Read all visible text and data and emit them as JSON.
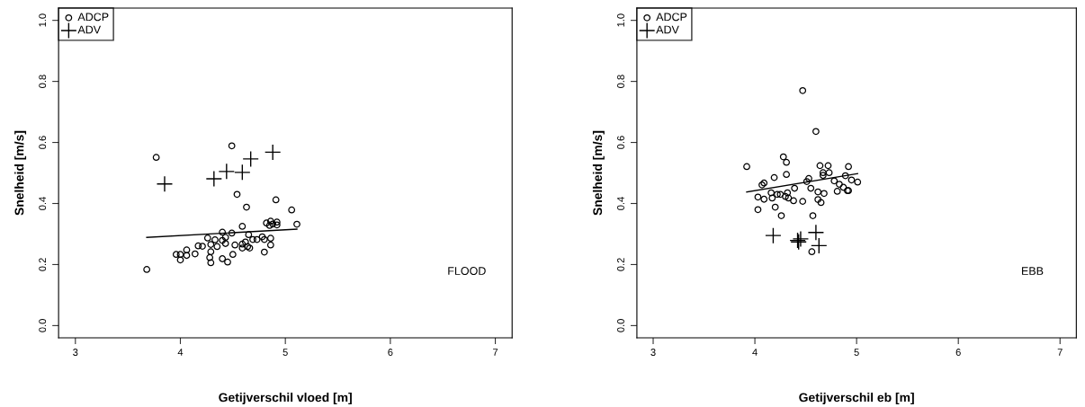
{
  "chart_data": [
    {
      "type": "scatter",
      "xlabel": "Getijverschil vloed [m]",
      "ylabel": "Snelheid [m/s]",
      "xlim": [
        2.84,
        7.16
      ],
      "ylim": [
        -0.04,
        1.04
      ],
      "xticks": [
        3,
        4,
        5,
        6,
        7
      ],
      "yticks": [
        {
          "value": 0,
          "label": "0.0"
        },
        {
          "value": 0.2,
          "label": "0.2"
        },
        {
          "value": 0.4,
          "label": "0.4"
        },
        {
          "value": 0.6,
          "label": "0.6"
        },
        {
          "value": 0.8,
          "label": "0.8"
        },
        {
          "value": 1,
          "label": "1.0"
        }
      ],
      "grid": false,
      "legend": "top left",
      "annotations": [
        "FLOOD"
      ],
      "series": [
        {
          "name": "ADCP",
          "color": "#000000",
          "marker": "circle",
          "x": [
            3.77,
            4.49,
            3.68,
            4.54,
            4.63,
            4.91,
            5.06,
            5.11,
            4.59,
            4.82,
            4.86,
            4.88,
            4.92,
            4.92,
            4.85,
            4.4,
            4.49,
            4.65,
            4.26,
            4.33,
            4.4,
            4.43,
            4.43,
            4.29,
            4.35,
            4.17,
            4.21,
            4.52,
            4.59,
            4.62,
            4.59,
            4.64,
            4.66,
            4.69,
            4.73,
            4.78,
            4.8,
            4.86,
            4.86,
            4.8,
            4.06,
            3.96,
            4.0,
            4.0,
            4.06,
            4.14,
            4.29,
            4.28,
            4.29,
            4.4,
            4.45,
            4.5
          ],
          "values": [
            0.551,
            0.589,
            0.184,
            0.43,
            0.388,
            0.412,
            0.379,
            0.332,
            0.325,
            0.336,
            0.342,
            0.333,
            0.339,
            0.33,
            0.328,
            0.306,
            0.303,
            0.298,
            0.287,
            0.281,
            0.279,
            0.289,
            0.269,
            0.266,
            0.259,
            0.261,
            0.26,
            0.264,
            0.267,
            0.274,
            0.254,
            0.259,
            0.254,
            0.282,
            0.282,
            0.291,
            0.282,
            0.286,
            0.264,
            0.241,
            0.248,
            0.233,
            0.233,
            0.215,
            0.23,
            0.235,
            0.242,
            0.223,
            0.206,
            0.219,
            0.208,
            0.233
          ]
        },
        {
          "name": "ADV",
          "color": "#000000",
          "marker": "cross",
          "x": [
            3.85,
            4.32,
            4.44,
            4.59,
            4.67,
            4.88
          ],
          "values": [
            0.464,
            0.481,
            0.505,
            0.502,
            0.546,
            0.568
          ]
        },
        {
          "type": "line",
          "color": "#000000",
          "marker": "none",
          "x": [
            3.68,
            5.11
          ],
          "values": [
            0.289,
            0.316
          ]
        }
      ]
    },
    {
      "type": "scatter",
      "xlabel": "Getijverschil eb [m]",
      "ylabel": "Snelheid [m/s]",
      "xlim": [
        2.84,
        7.16
      ],
      "ylim": [
        -0.04,
        1.04
      ],
      "xticks": [
        3,
        4,
        5,
        6,
        7
      ],
      "yticks": [
        {
          "value": 0,
          "label": "0.0"
        },
        {
          "value": 0.2,
          "label": "0.2"
        },
        {
          "value": 0.4,
          "label": "0.4"
        },
        {
          "value": 0.6,
          "label": "0.6"
        },
        {
          "value": 0.8,
          "label": "0.8"
        },
        {
          "value": 1,
          "label": "1.0"
        }
      ],
      "grid": false,
      "legend": "top left",
      "annotations": [
        "EBB"
      ],
      "series": [
        {
          "name": "ADCP",
          "color": "#000000",
          "marker": "circle",
          "x": [
            4.47,
            4.6,
            3.92,
            4.28,
            4.31,
            4.19,
            4.31,
            4.07,
            4.09,
            4.64,
            4.72,
            4.92,
            4.73,
            4.67,
            4.67,
            4.89,
            4.53,
            4.51,
            4.95,
            5.01,
            4.78,
            4.83,
            4.39,
            4.55,
            4.87,
            4.81,
            4.91,
            4.92,
            4.62,
            4.68,
            4.16,
            4.22,
            4.25,
            4.32,
            4.3,
            4.33,
            4.17,
            4.03,
            4.09,
            4.38,
            4.47,
            4.62,
            4.65,
            4.03,
            4.2,
            4.26,
            4.57,
            4.56
          ],
          "values": [
            0.77,
            0.636,
            0.521,
            0.553,
            0.535,
            0.485,
            0.495,
            0.461,
            0.467,
            0.524,
            0.524,
            0.521,
            0.501,
            0.501,
            0.492,
            0.491,
            0.482,
            0.472,
            0.477,
            0.47,
            0.474,
            0.463,
            0.45,
            0.45,
            0.453,
            0.44,
            0.442,
            0.442,
            0.438,
            0.433,
            0.435,
            0.43,
            0.43,
            0.435,
            0.423,
            0.418,
            0.418,
            0.421,
            0.414,
            0.409,
            0.407,
            0.413,
            0.403,
            0.38,
            0.388,
            0.36,
            0.36,
            0.242
          ]
        },
        {
          "name": "ADV",
          "color": "#000000",
          "marker": "cross",
          "x": [
            4.18,
            4.42,
            4.45,
            4.43,
            4.6,
            4.63
          ],
          "values": [
            0.295,
            0.279,
            0.284,
            0.274,
            0.305,
            0.262
          ]
        },
        {
          "type": "line",
          "color": "#000000",
          "marker": "none",
          "x": [
            3.92,
            5.01
          ],
          "values": [
            0.438,
            0.498
          ]
        }
      ]
    }
  ]
}
